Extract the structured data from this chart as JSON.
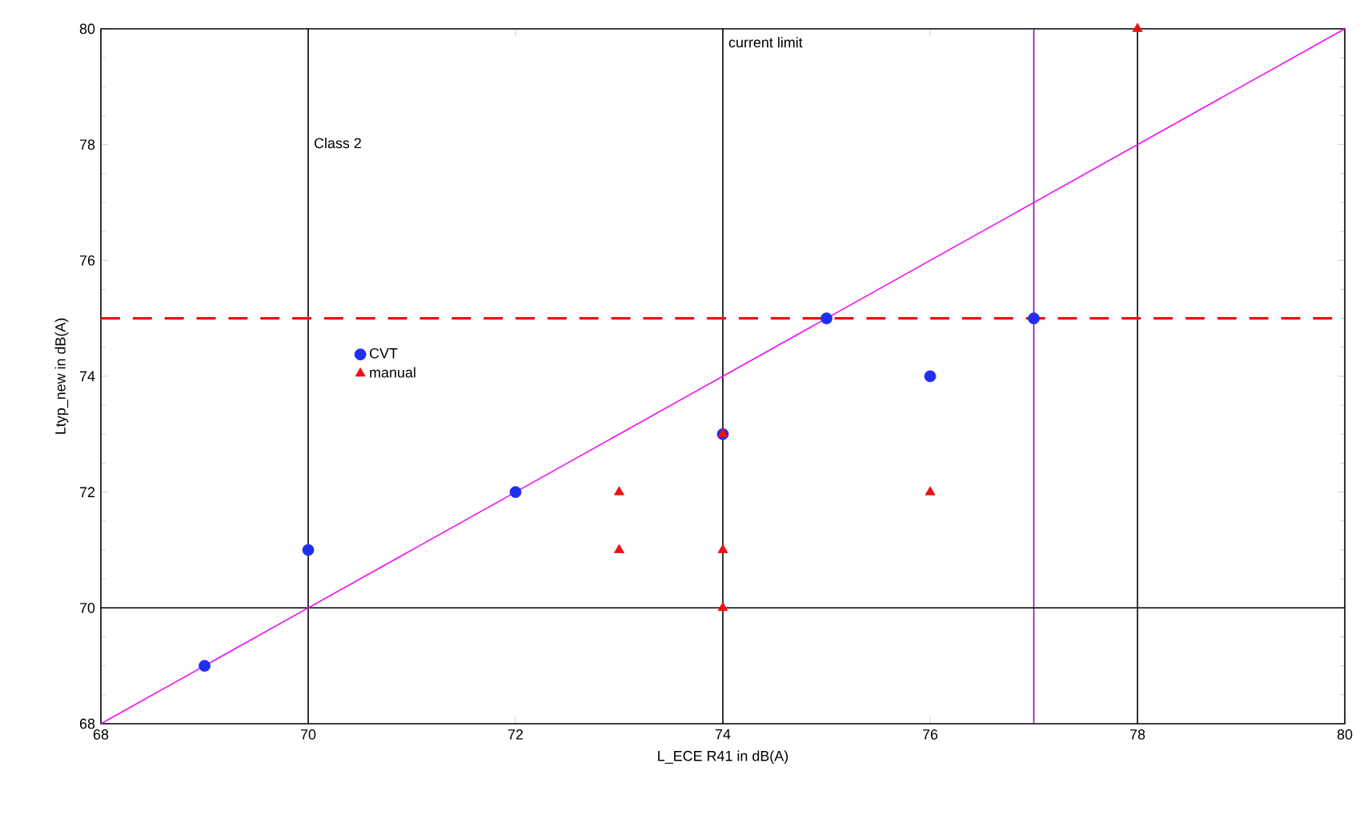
{
  "chart_data": {
    "type": "scatter",
    "xlabel": "L_ECE R41 in dB(A)",
    "ylabel": "Ltyp_new in dB(A)",
    "xlim": [
      68,
      80
    ],
    "xticks": [
      68,
      70,
      72,
      74,
      76,
      78,
      80
    ],
    "ylim": [
      68,
      80
    ],
    "yticks": [
      68,
      70,
      72,
      74,
      76,
      78,
      80
    ],
    "legend": "left",
    "series": [
      {
        "name": "CVT",
        "color": "#1f2ff0",
        "marker": "circle",
        "x": [
          69,
          70,
          72,
          74,
          75,
          76,
          77
        ],
        "values": [
          69,
          71,
          72,
          73,
          75,
          74,
          75
        ]
      },
      {
        "name": "manual",
        "color": "#f01010",
        "marker": "triangle",
        "x": [
          73,
          73,
          74,
          74,
          74,
          76,
          78
        ],
        "values": [
          72,
          71,
          73,
          71,
          70,
          72,
          80
        ]
      },
      {
        "type": "line",
        "color": "#f010f0",
        "marker": "none",
        "x": [
          68,
          80
        ],
        "values": [
          68,
          80
        ]
      }
    ],
    "ref_lines": [
      {
        "axis": "x",
        "value": 70,
        "label": "Class 2",
        "color": "#000000",
        "line_style": "solid"
      },
      {
        "axis": "x",
        "value": 74,
        "label": "current limit",
        "color": "#000000",
        "line_style": "solid"
      },
      {
        "axis": "x",
        "value": 78,
        "color": "#000000",
        "line_style": "solid"
      },
      {
        "axis": "x",
        "value": 77,
        "color": "#7a1a9a",
        "line_style": "solid"
      },
      {
        "axis": "y",
        "value": 70,
        "color": "#000000",
        "line_style": "solid"
      },
      {
        "axis": "y",
        "value": 75,
        "color": "#f01010",
        "line_style": "dashed"
      }
    ]
  }
}
